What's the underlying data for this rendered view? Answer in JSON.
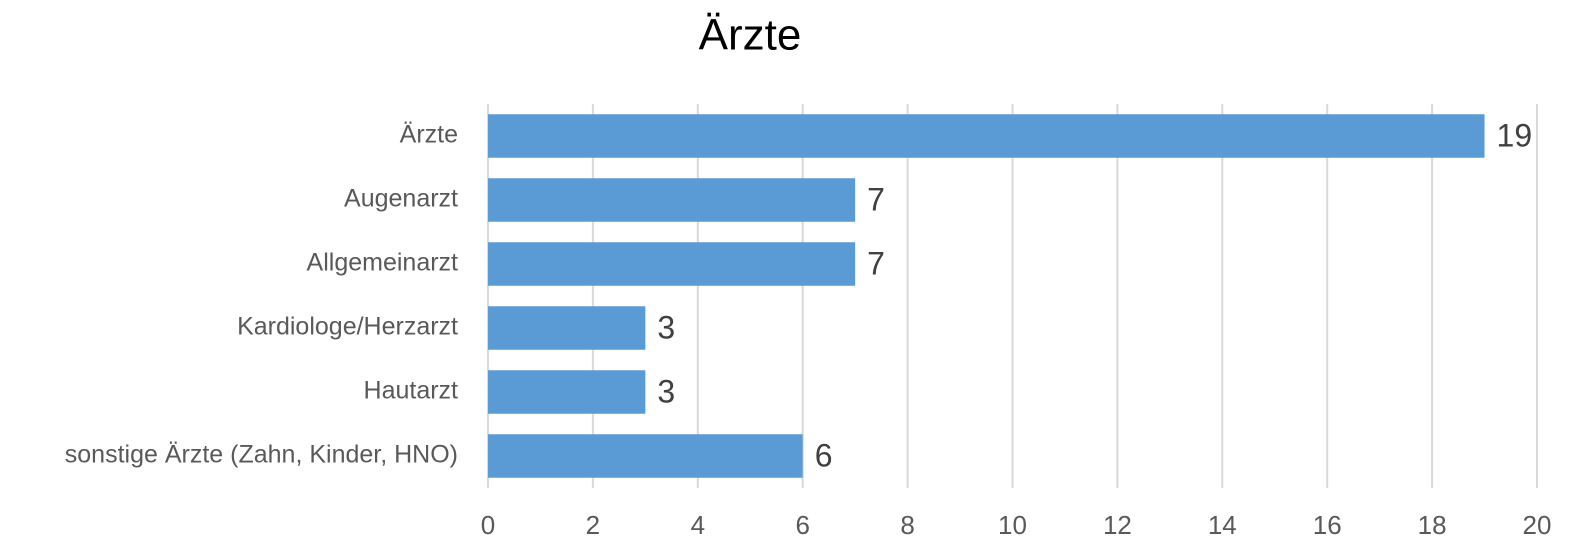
{
  "chart_data": {
    "type": "hbar",
    "title": "Ärzte",
    "categories": [
      "Ärzte",
      "Augenarzt",
      "Allgemeinarzt",
      "Kardiologe/Herzarzt",
      "Hautarzt",
      "sonstige Ärzte (Zahn, Kinder, HNO)"
    ],
    "values": [
      19,
      7,
      7,
      3,
      3,
      6
    ],
    "color": "#5b9bd5",
    "xlim": [
      0,
      20
    ],
    "xticks": [
      0,
      2,
      4,
      6,
      8,
      10,
      12,
      14,
      16,
      18,
      20
    ],
    "grid": true
  }
}
